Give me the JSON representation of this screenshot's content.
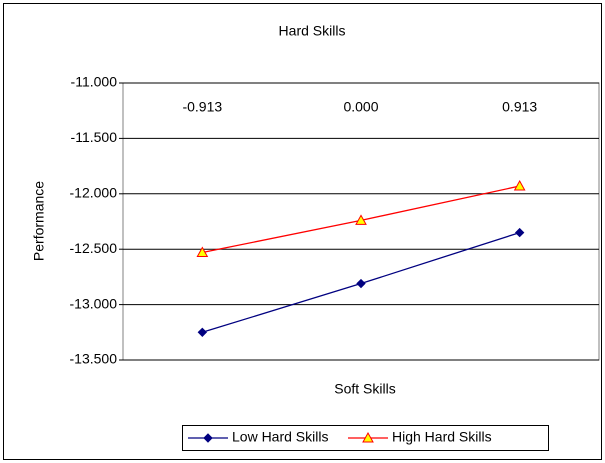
{
  "chart_data": {
    "type": "line",
    "title": "Hard Skills",
    "x_label": "Soft Skills",
    "y_label": "Performance",
    "categories": [
      "-0.913",
      "0.000",
      "0.913"
    ],
    "series": [
      {
        "name": "Low Hard Skills",
        "color": "#000080",
        "marker": "diamond",
        "values": [
          -13.25,
          -12.81,
          -12.35
        ]
      },
      {
        "name": "High Hard Skills",
        "color": "#ff0000",
        "marker": "triangle",
        "values": [
          -12.53,
          -12.24,
          -11.93
        ]
      }
    ],
    "ylim": [
      -13.5,
      -11
    ],
    "yticks": [
      {
        "value": -11,
        "label": "-11.000"
      },
      {
        "value": -11.5,
        "label": "-11.500"
      },
      {
        "value": -12,
        "label": "-12.000"
      },
      {
        "value": -12.5,
        "label": "-12.500"
      },
      {
        "value": -13,
        "label": "-13.000"
      },
      {
        "value": -13.5,
        "label": "-13.500"
      }
    ],
    "grid": true,
    "legend": "bottom"
  }
}
